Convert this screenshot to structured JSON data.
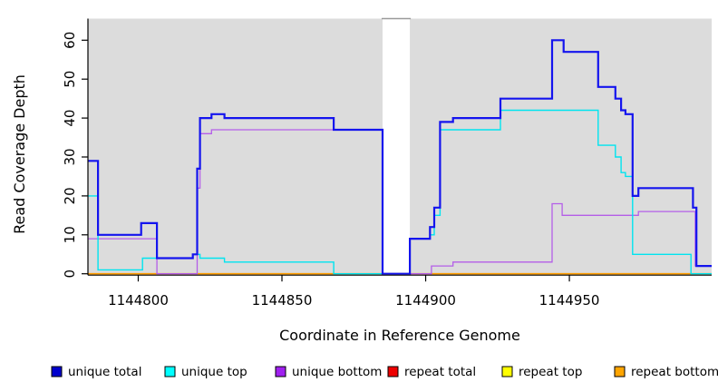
{
  "chart_data": {
    "type": "line",
    "subtype": "step-coverage",
    "title": "",
    "xlabel": "Coordinate in Reference Genome",
    "ylabel": "Read Coverage Depth",
    "x_ticks": [
      1144800,
      1144850,
      1144900,
      1144950
    ],
    "y_ticks": [
      0,
      10,
      20,
      30,
      40,
      50,
      60
    ],
    "x_domain": [
      1144782.5,
      1144999.5
    ],
    "y_domain": [
      0,
      65.5
    ],
    "grid": "off",
    "plot_bg": "#dcdcdc",
    "gap_region": {
      "start": 1144885,
      "end": 1144894.5,
      "note": "white no-data gap"
    },
    "legend_position": "bottom",
    "draw_order": [
      "repeat total",
      "repeat top",
      "repeat bottom",
      "unique bottom",
      "unique top",
      "unique total"
    ],
    "series": [
      {
        "name": "unique total",
        "color": "#1414ee",
        "swatch": "#0000cd",
        "width": 2.2,
        "steps": [
          [
            1144782.5,
            29
          ],
          [
            1144786,
            10
          ],
          [
            1144801,
            13
          ],
          [
            1144806.5,
            4
          ],
          [
            1144819,
            5
          ],
          [
            1144820.5,
            27
          ],
          [
            1144821.5,
            40
          ],
          [
            1144825.5,
            41
          ],
          [
            1144830,
            40
          ],
          [
            1144868,
            37
          ],
          [
            1144885,
            0
          ],
          [
            1144894.5,
            9
          ],
          [
            1144901.5,
            12
          ],
          [
            1144903,
            17
          ],
          [
            1144905,
            39
          ],
          [
            1144909.5,
            40
          ],
          [
            1144926,
            45
          ],
          [
            1144944,
            60
          ],
          [
            1144948,
            57
          ],
          [
            1144960,
            48
          ],
          [
            1144966,
            45
          ],
          [
            1144968,
            42
          ],
          [
            1144969.5,
            41
          ],
          [
            1144972,
            20
          ],
          [
            1144974,
            22
          ],
          [
            1144993,
            17
          ],
          [
            1144994.2,
            2
          ]
        ]
      },
      {
        "name": "unique top",
        "color": "#00e4ef",
        "swatch": "#00ffff",
        "width": 1.4,
        "steps": [
          [
            1144782.5,
            20
          ],
          [
            1144786,
            1
          ],
          [
            1144801.5,
            4
          ],
          [
            1144819,
            5
          ],
          [
            1144821.5,
            4
          ],
          [
            1144830,
            3
          ],
          [
            1144868,
            0
          ],
          [
            1144894.5,
            9
          ],
          [
            1144901.5,
            10
          ],
          [
            1144903,
            15
          ],
          [
            1144905,
            37
          ],
          [
            1144926,
            42
          ],
          [
            1144960,
            33
          ],
          [
            1144966,
            30
          ],
          [
            1144968,
            26
          ],
          [
            1144969.5,
            25
          ],
          [
            1144972,
            5
          ],
          [
            1144992.3,
            0
          ]
        ]
      },
      {
        "name": "unique bottom",
        "color": "#b45ee8",
        "swatch": "#a020f0",
        "width": 1.3,
        "steps": [
          [
            1144782.5,
            9
          ],
          [
            1144806.5,
            0
          ],
          [
            1144820.5,
            22
          ],
          [
            1144821.5,
            36
          ],
          [
            1144825.5,
            37
          ],
          [
            1144885,
            0
          ],
          [
            1144902,
            2
          ],
          [
            1144909.5,
            3
          ],
          [
            1144944,
            18
          ],
          [
            1144947.5,
            15
          ],
          [
            1144974,
            16
          ],
          [
            1144993.8,
            2
          ]
        ]
      },
      {
        "name": "repeat total",
        "color": "#ee0000",
        "swatch": "#ee0000",
        "width": 1.3,
        "steps": [
          [
            1144782.5,
            0
          ]
        ]
      },
      {
        "name": "repeat top",
        "color": "#ffff00",
        "swatch": "#ffff00",
        "width": 1.3,
        "steps": [
          [
            1144782.5,
            0
          ]
        ]
      },
      {
        "name": "repeat bottom",
        "color": "#ff9d00",
        "swatch": "#ffa500",
        "width": 1.6,
        "steps": [
          [
            1144782.5,
            0
          ]
        ]
      }
    ],
    "legend": [
      {
        "label": "unique total",
        "color": "#0000cd"
      },
      {
        "label": "unique top",
        "color": "#00ffff"
      },
      {
        "label": "unique bottom",
        "color": "#a020f0"
      },
      {
        "label": "repeat total",
        "color": "#ee0000"
      },
      {
        "label": "repeat top",
        "color": "#ffff00"
      },
      {
        "label": "repeat bottom",
        "color": "#ffa500"
      }
    ]
  },
  "labels": {
    "xlabel": "Coordinate in Reference Genome",
    "ylabel": "Read Coverage Depth"
  }
}
